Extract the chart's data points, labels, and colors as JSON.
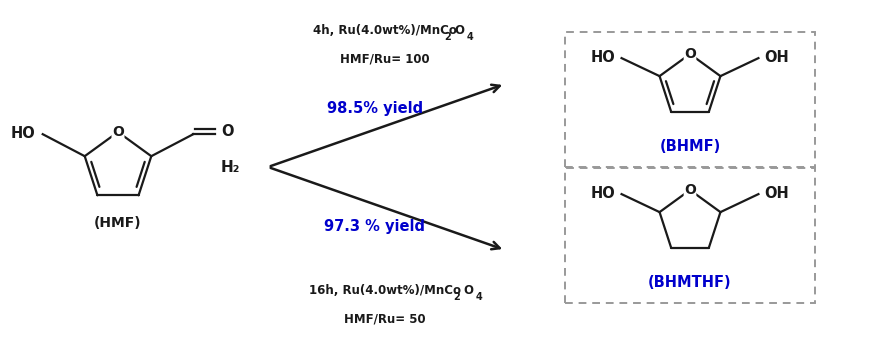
{
  "background_color": "#ffffff",
  "black": "#1a1a1a",
  "blue": "#0000cc",
  "gray": "#888888",
  "figsize": [
    8.84,
    3.49
  ],
  "dpi": 100,
  "hmf_label": "(HMF)",
  "bhmf_label": "(BHMF)",
  "bhmthf_label": "(BHMTHF)",
  "h2_label": "H₂",
  "top_cond1": "4h, Ru(4.0wt%)/MnCo",
  "top_cond2": "O",
  "top_cond3": "HMF/Ru= 100",
  "top_yield": "98.5% yield",
  "bot_cond1": "16h, Ru(4.0wt%)/MnCo",
  "bot_cond2": "O",
  "bot_cond3": "HMF/Ru= 50",
  "bot_yield": "97.3 % yield"
}
